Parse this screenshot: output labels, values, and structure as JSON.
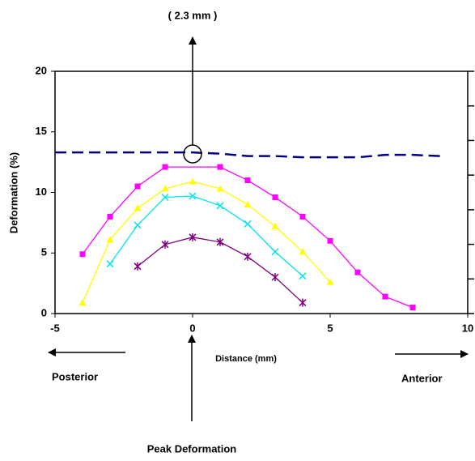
{
  "chart_data": {
    "type": "line",
    "annotation_top": "( 2.3 mm )",
    "x_label": "Distance (mm)",
    "y_label": "Deformation (%)",
    "annotation_left": "Posterior",
    "annotation_right": "Anterior",
    "annotation_bottom": "Peak Deformation",
    "xlim": [
      -5,
      10
    ],
    "xticks": [
      -5,
      0,
      5,
      10
    ],
    "ylim": [
      0,
      20
    ],
    "yticks": [
      0,
      5,
      10,
      15,
      20
    ],
    "series": [
      {
        "color": "#ff00ff",
        "marker": "square",
        "x": [
          -4,
          -3,
          -2,
          -1,
          1,
          2,
          3,
          4,
          5,
          6,
          7,
          8
        ],
        "values": [
          4.9,
          8.0,
          10.5,
          12.1,
          12.1,
          11.0,
          9.6,
          8.0,
          6.0,
          3.4,
          1.4,
          0.5
        ]
      },
      {
        "color": "#ffff00",
        "marker": "triangle",
        "x": [
          -4,
          -3,
          -2,
          -1,
          0,
          1,
          2,
          3,
          4,
          5
        ],
        "values": [
          0.9,
          6.1,
          8.7,
          10.3,
          10.9,
          10.3,
          9.0,
          7.2,
          5.1,
          2.6
        ]
      },
      {
        "color": "#00e5ee",
        "marker": "x",
        "x": [
          -3,
          -2,
          -1,
          0,
          1,
          2,
          3,
          4
        ],
        "values": [
          4.1,
          7.3,
          9.6,
          9.7,
          8.9,
          7.4,
          5.1,
          3.1
        ]
      },
      {
        "color": "#800080",
        "marker": "star",
        "x": [
          -2,
          -1,
          0,
          1,
          2,
          3,
          4
        ],
        "values": [
          3.9,
          5.7,
          6.3,
          5.9,
          4.7,
          3.0,
          0.9
        ]
      },
      {
        "color": "#000080",
        "marker": "none",
        "dash": true,
        "x": [
          -5,
          -4,
          -3,
          -2,
          -1,
          0,
          1,
          2,
          3,
          4,
          5,
          6,
          7,
          8,
          9
        ],
        "values": [
          13.3,
          13.3,
          13.3,
          13.3,
          13.3,
          13.3,
          13.2,
          13.0,
          13.0,
          12.9,
          12.9,
          12.9,
          13.1,
          13.1,
          13.0
        ]
      }
    ]
  }
}
